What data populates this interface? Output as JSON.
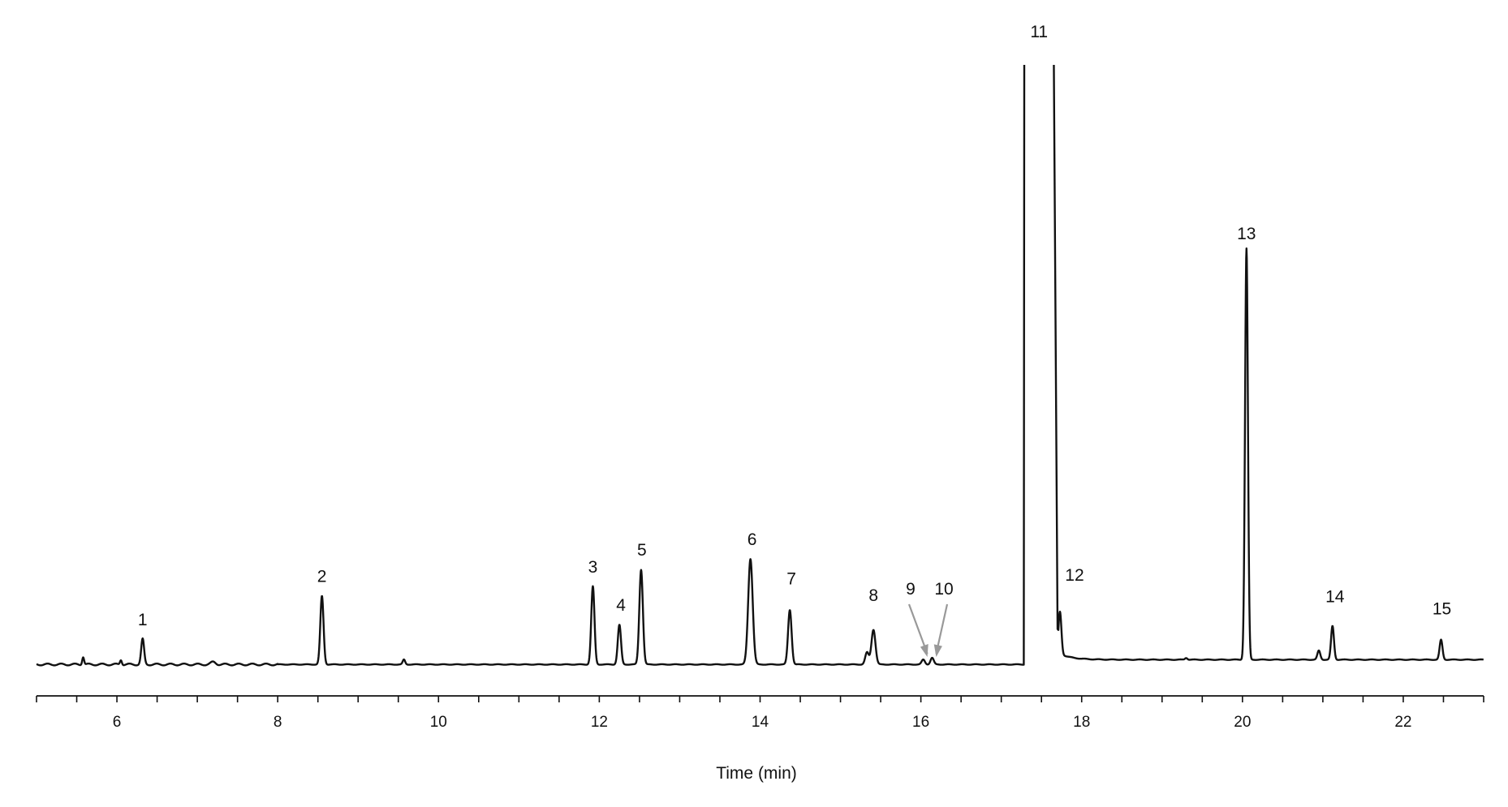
{
  "chart_data": {
    "type": "line",
    "title": "",
    "xlabel": "Time (min)",
    "ylabel": "",
    "xlim": [
      5,
      23
    ],
    "ylim": [
      0,
      100
    ],
    "x_ticks_labeled": [
      6,
      8,
      10,
      12,
      14,
      16,
      18,
      20,
      22
    ],
    "x_tick_labels": [
      "6",
      "8",
      "10",
      "12",
      "14",
      "16",
      "18",
      "20",
      "22"
    ],
    "x_minor_step": 0.5,
    "grid": false,
    "line_color": "#111111",
    "arrow_color": "#999999",
    "baseline": 0.1,
    "peaks": [
      {
        "label": "1",
        "rt": 6.32,
        "height": 4.2,
        "width": 0.018
      },
      {
        "label": "2",
        "rt": 8.55,
        "height": 11.4,
        "width": 0.02
      },
      {
        "label": "3",
        "rt": 11.92,
        "height": 13.0,
        "width": 0.02
      },
      {
        "label": "4",
        "rt": 12.25,
        "height": 6.6,
        "width": 0.02
      },
      {
        "label": "5",
        "rt": 12.52,
        "height": 15.8,
        "width": 0.022
      },
      {
        "label": "6",
        "rt": 13.88,
        "height": 17.6,
        "width": 0.028
      },
      {
        "label": "7",
        "rt": 14.37,
        "height": 9.1,
        "width": 0.022
      },
      {
        "label": "8",
        "rt": 15.41,
        "height": 5.8,
        "width": 0.025
      },
      {
        "label": "9",
        "rt": 16.03,
        "height": 0.8,
        "width": 0.02,
        "arrow": true
      },
      {
        "label": "10",
        "rt": 16.14,
        "height": 1.1,
        "width": 0.02,
        "arrow": true
      },
      {
        "label": "11",
        "rt": 17.47,
        "height": 100,
        "width": 0.18,
        "clipped": true
      },
      {
        "label": "12",
        "rt": 17.73,
        "height": 7.0,
        "width": 0.018
      },
      {
        "label": "13",
        "rt": 20.05,
        "height": 68.5,
        "width": 0.018
      },
      {
        "label": "14",
        "rt": 21.12,
        "height": 5.6,
        "width": 0.018
      },
      {
        "label": "15",
        "rt": 22.47,
        "height": 3.3,
        "width": 0.018
      }
    ],
    "minor_peaks": [
      {
        "rt": 5.58,
        "height": 1.3,
        "width": 0.012
      },
      {
        "rt": 6.05,
        "height": 0.8,
        "width": 0.012
      },
      {
        "rt": 7.2,
        "height": 0.4,
        "width": 0.03
      },
      {
        "rt": 9.57,
        "height": 0.8,
        "width": 0.015
      },
      {
        "rt": 15.33,
        "height": 2.0,
        "width": 0.022
      },
      {
        "rt": 20.95,
        "height": 1.5,
        "width": 0.018
      },
      {
        "rt": 19.3,
        "height": 0.3,
        "width": 0.015
      }
    ],
    "post_peak11_baseline": {
      "start": 17.7,
      "end": 23,
      "offset": 0.8,
      "tail": 1.2
    }
  }
}
